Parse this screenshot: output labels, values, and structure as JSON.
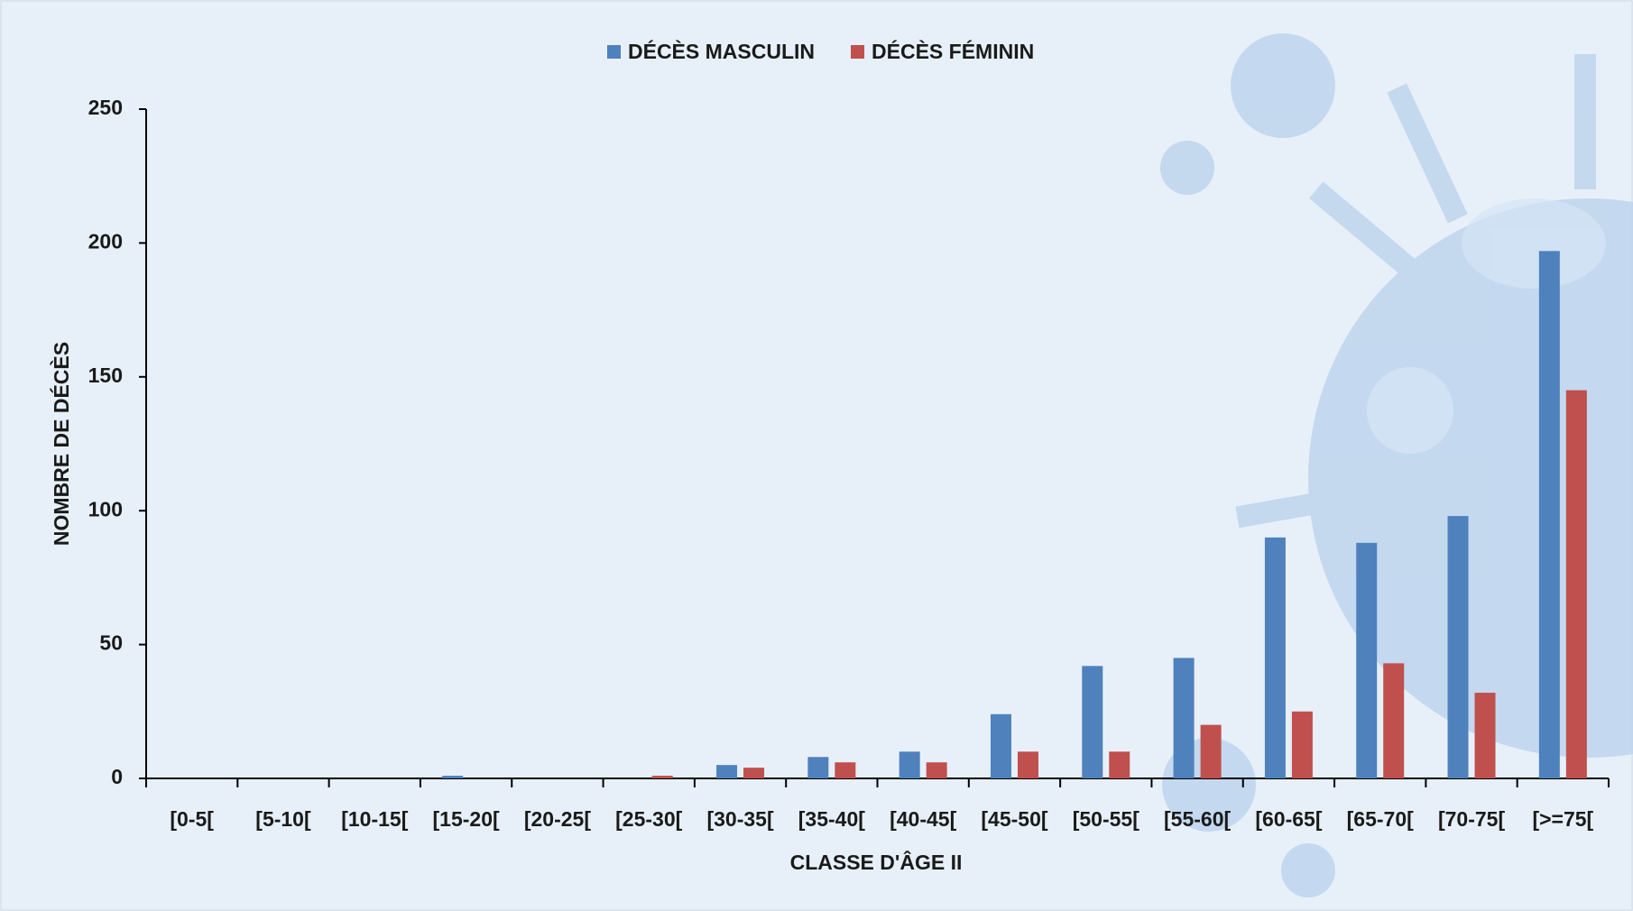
{
  "chart_data": {
    "type": "bar",
    "categories": [
      "[0-5[",
      "[5-10[",
      "[10-15[",
      "[15-20[",
      "[20-25[",
      "[25-30[",
      "[30-35[",
      "[35-40[",
      "[40-45[",
      "[45-50[",
      "[50-55[",
      "[55-60[",
      "[60-65[",
      "[65-70[",
      "[70-75[",
      "[>=75["
    ],
    "series": [
      {
        "name": "DÉCÈS MASCULIN",
        "color": "#4f81bd",
        "values": [
          0,
          0,
          0,
          1,
          0,
          0,
          5,
          8,
          10,
          24,
          42,
          45,
          90,
          88,
          98,
          197
        ]
      },
      {
        "name": "DÉCÈS FÉMININ",
        "color": "#c0504d",
        "values": [
          0,
          0,
          0,
          0,
          0,
          1,
          4,
          6,
          6,
          10,
          10,
          20,
          25,
          43,
          32,
          145
        ]
      }
    ],
    "ylim": [
      0,
      250
    ],
    "yticks": [
      0,
      50,
      100,
      150,
      200,
      250
    ],
    "y_label": "NOMBRE  DE DÉCÈS",
    "x_label": "CLASSE D'ÂGE II",
    "grid": false,
    "legend": "top"
  }
}
